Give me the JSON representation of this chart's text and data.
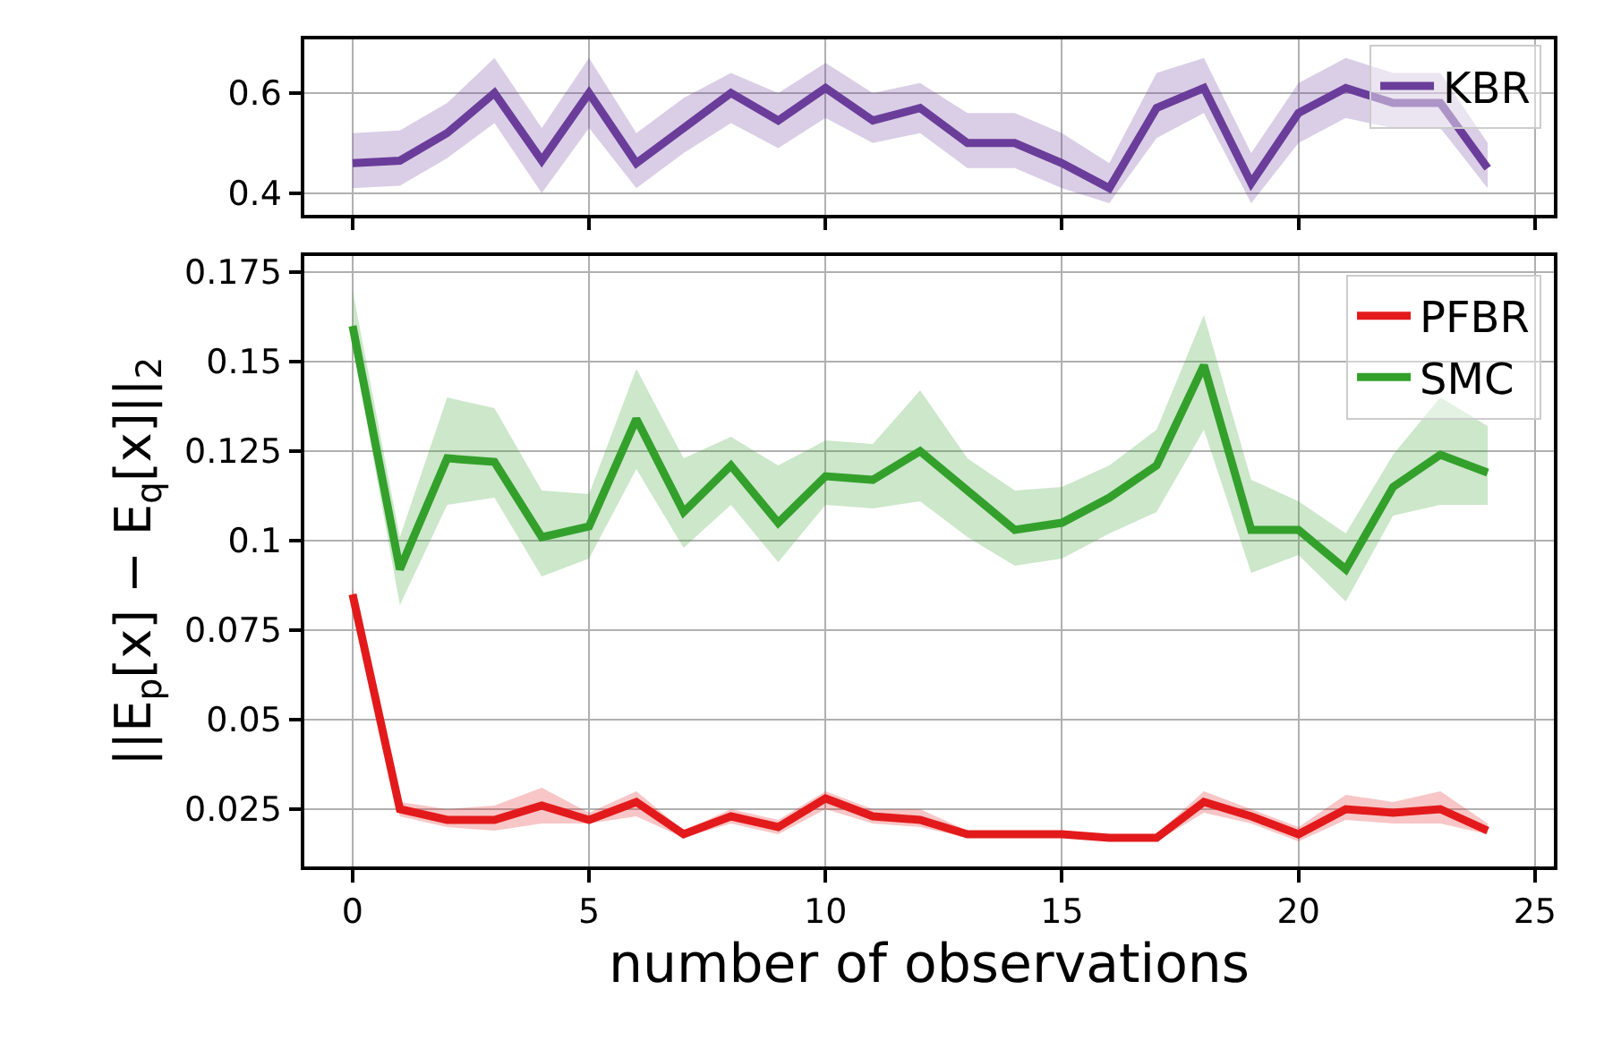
{
  "chart_data": [
    {
      "type": "line",
      "x": [
        0,
        1,
        2,
        3,
        4,
        5,
        6,
        7,
        8,
        9,
        10,
        11,
        12,
        13,
        14,
        15,
        16,
        17,
        18,
        19,
        20,
        21,
        22,
        23,
        24
      ],
      "xlim": [
        -1.02,
        25.4
      ],
      "xticks": [
        0,
        5,
        10,
        15,
        20,
        25
      ],
      "ylim": [
        0.357,
        0.707
      ],
      "yticks": [
        0.4,
        0.6
      ],
      "tick_labels": "y",
      "grid": true,
      "legend": "top right",
      "line_style": "solid",
      "marker": "none",
      "series": [
        {
          "name": "KBR",
          "color": "#6a3d9a",
          "values": [
            0.46,
            0.465,
            0.52,
            0.6,
            0.465,
            0.6,
            0.46,
            0.53,
            0.6,
            0.545,
            0.61,
            0.545,
            0.57,
            0.5,
            0.5,
            0.46,
            0.41,
            0.57,
            0.61,
            0.42,
            0.56,
            0.61,
            0.58,
            0.58,
            0.45
          ],
          "lower": [
            0.41,
            0.415,
            0.47,
            0.54,
            0.4,
            0.53,
            0.41,
            0.48,
            0.54,
            0.49,
            0.55,
            0.5,
            0.52,
            0.45,
            0.45,
            0.41,
            0.38,
            0.51,
            0.56,
            0.38,
            0.5,
            0.55,
            0.53,
            0.53,
            0.41
          ],
          "upper": [
            0.52,
            0.525,
            0.58,
            0.67,
            0.53,
            0.67,
            0.52,
            0.59,
            0.64,
            0.6,
            0.66,
            0.6,
            0.62,
            0.56,
            0.56,
            0.52,
            0.46,
            0.64,
            0.67,
            0.48,
            0.62,
            0.67,
            0.64,
            0.64,
            0.5
          ]
        }
      ]
    },
    {
      "type": "line",
      "x": [
        0,
        1,
        2,
        3,
        4,
        5,
        6,
        7,
        8,
        9,
        10,
        11,
        12,
        13,
        14,
        15,
        16,
        17,
        18,
        19,
        20,
        21,
        22,
        23,
        24
      ],
      "xlim": [
        -1.02,
        25.4
      ],
      "xticks": [
        0,
        5,
        10,
        15,
        20,
        25
      ],
      "ylim": [
        0.009,
        0.1795
      ],
      "yticks": [
        0.025,
        0.05,
        0.075,
        0.1,
        0.125,
        0.15,
        0.175
      ],
      "xlabel": "number of observations",
      "ylabel": "||E$_{p}$[x] − E$_{q}$[x]||$_{2}$",
      "grid": true,
      "legend": "top right",
      "line_style": "solid",
      "marker": "none",
      "series": [
        {
          "name": "PFBR",
          "color": "#e31a1c",
          "values": [
            0.085,
            0.025,
            0.022,
            0.022,
            0.026,
            0.022,
            0.027,
            0.018,
            0.023,
            0.02,
            0.028,
            0.023,
            0.022,
            0.018,
            0.018,
            0.018,
            0.017,
            0.017,
            0.027,
            0.023,
            0.018,
            0.025,
            0.024,
            0.025,
            0.019
          ],
          "lower": [
            0.083,
            0.023,
            0.02,
            0.019,
            0.021,
            0.021,
            0.023,
            0.017,
            0.021,
            0.018,
            0.025,
            0.021,
            0.02,
            0.017,
            0.017,
            0.017,
            0.016,
            0.016,
            0.024,
            0.021,
            0.016,
            0.022,
            0.021,
            0.021,
            0.018
          ],
          "upper": [
            0.087,
            0.027,
            0.025,
            0.026,
            0.031,
            0.024,
            0.03,
            0.019,
            0.025,
            0.022,
            0.03,
            0.025,
            0.025,
            0.019,
            0.019,
            0.019,
            0.018,
            0.018,
            0.03,
            0.025,
            0.02,
            0.029,
            0.027,
            0.03,
            0.021
          ]
        },
        {
          "name": "SMC",
          "color": "#33a02c",
          "values": [
            0.16,
            0.092,
            0.123,
            0.122,
            0.101,
            0.104,
            0.134,
            0.108,
            0.121,
            0.105,
            0.118,
            0.117,
            0.125,
            0.114,
            0.103,
            0.105,
            0.112,
            0.121,
            0.149,
            0.103,
            0.103,
            0.092,
            0.115,
            0.124,
            0.119
          ],
          "lower": [
            0.155,
            0.082,
            0.11,
            0.112,
            0.09,
            0.095,
            0.12,
            0.098,
            0.11,
            0.094,
            0.11,
            0.109,
            0.111,
            0.101,
            0.093,
            0.095,
            0.102,
            0.108,
            0.131,
            0.091,
            0.096,
            0.083,
            0.107,
            0.11,
            0.11
          ],
          "upper": [
            0.17,
            0.101,
            0.14,
            0.137,
            0.114,
            0.113,
            0.148,
            0.123,
            0.129,
            0.121,
            0.128,
            0.127,
            0.142,
            0.123,
            0.114,
            0.115,
            0.121,
            0.131,
            0.163,
            0.117,
            0.111,
            0.102,
            0.124,
            0.14,
            0.132
          ]
        }
      ]
    }
  ]
}
